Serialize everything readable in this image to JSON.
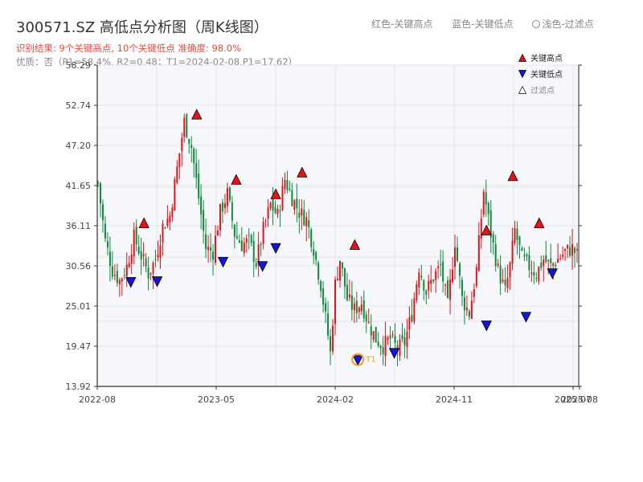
{
  "title": "300571.SZ 高低点分析图（周K线图）",
  "subtitle_result": "识别结果: 9个关键高点, 10个关键低点  准确度: 98.0%",
  "subtitle_quality": "优质：否（P1=58.4%, R2=0.48；T1=2024-02-08,P1=17.62）",
  "top_legend": {
    "red": "红色-关键高点",
    "blue": "蓝色-关键低点",
    "light": "浅色-过滤点"
  },
  "colors": {
    "up": "#e5121a",
    "down": "#0d8a3a",
    "high_marker": "#e5121a",
    "low_marker": "#1515d8",
    "t1": "#f39c12",
    "plot_bg": "#f5f7fa",
    "grid": "#e3e6ea",
    "axis": "#333333"
  },
  "chart_data": {
    "type": "candlestick",
    "y_ticks": [
      "13.92",
      "19.47",
      "25.01",
      "30.56",
      "36.11",
      "41.65",
      "47.20",
      "52.74",
      "58.29"
    ],
    "ylim": [
      13.92,
      58.29
    ],
    "x_ticks": [
      "2022-08",
      "2023-05",
      "2024-02",
      "2024-11",
      "2025-07",
      "2025-08"
    ],
    "grid": true,
    "legend_position": "top-right",
    "legend": [
      {
        "key": "high",
        "label": "关键高点"
      },
      {
        "key": "low",
        "label": "关键低点"
      },
      {
        "key": "filtered",
        "label": "过滤点"
      }
    ],
    "t1_label": "T1",
    "t1": {
      "date": "2024-02-08",
      "price": 17.62
    },
    "key_highs": [
      {
        "date": "2022-10",
        "price": 35.5
      },
      {
        "date": "2023-02",
        "price": 50.5
      },
      {
        "date": "2023-05",
        "price": 41.5
      },
      {
        "date": "2023-08",
        "price": 39.5
      },
      {
        "date": "2023-10",
        "price": 42.5
      },
      {
        "date": "2024-02",
        "price": 32.5
      },
      {
        "date": "2024-12",
        "price": 34.5
      },
      {
        "date": "2025-02",
        "price": 42.0
      },
      {
        "date": "2025-04",
        "price": 35.5
      }
    ],
    "key_lows": [
      {
        "date": "2022-09",
        "price": 28.4
      },
      {
        "date": "2022-11",
        "price": 28.5
      },
      {
        "date": "2023-04",
        "price": 31.2
      },
      {
        "date": "2023-07",
        "price": 30.6
      },
      {
        "date": "2023-08",
        "price": 33.1
      },
      {
        "date": "2024-05",
        "price": 18.6
      },
      {
        "date": "2024-12",
        "price": 22.4
      },
      {
        "date": "2025-03",
        "price": 23.6
      },
      {
        "date": "2025-05",
        "price": 29.6
      },
      {
        "date": "2024-02-08",
        "price": 17.62
      }
    ],
    "weekly_close_path": [
      [
        0,
        42.0
      ],
      [
        3,
        34.0
      ],
      [
        6,
        30.0
      ],
      [
        9,
        28.5
      ],
      [
        12,
        30.5
      ],
      [
        15,
        34.5
      ],
      [
        18,
        32.0
      ],
      [
        21,
        29.5
      ],
      [
        24,
        31.5
      ],
      [
        27,
        36.0
      ],
      [
        30,
        37.5
      ],
      [
        33,
        44.0
      ],
      [
        36,
        50.5
      ],
      [
        39,
        47.0
      ],
      [
        42,
        40.0
      ],
      [
        45,
        33.0
      ],
      [
        48,
        32.5
      ],
      [
        51,
        38.0
      ],
      [
        54,
        40.5
      ],
      [
        57,
        35.0
      ],
      [
        60,
        33.5
      ],
      [
        63,
        34.0
      ],
      [
        66,
        31.0
      ],
      [
        69,
        35.5
      ],
      [
        72,
        39.0
      ],
      [
        75,
        37.5
      ],
      [
        78,
        42.5
      ],
      [
        81,
        40.0
      ],
      [
        84,
        38.0
      ],
      [
        87,
        37.0
      ],
      [
        90,
        33.0
      ],
      [
        93,
        28.0
      ],
      [
        96,
        21.0
      ],
      [
        97,
        18.5
      ],
      [
        99,
        28.0
      ],
      [
        101,
        31.5
      ],
      [
        104,
        26.0
      ],
      [
        107,
        24.5
      ],
      [
        110,
        25.5
      ],
      [
        113,
        22.5
      ],
      [
        116,
        20.5
      ],
      [
        119,
        19.5
      ],
      [
        122,
        20.5
      ],
      [
        125,
        19.0
      ],
      [
        128,
        20.0
      ],
      [
        131,
        24.0
      ],
      [
        134,
        30.5
      ],
      [
        137,
        27.0
      ],
      [
        140,
        29.0
      ],
      [
        143,
        30.5
      ],
      [
        146,
        25.0
      ],
      [
        149,
        34.0
      ],
      [
        152,
        26.0
      ],
      [
        155,
        24.0
      ],
      [
        158,
        30.0
      ],
      [
        161,
        41.0
      ],
      [
        164,
        35.0
      ],
      [
        167,
        30.0
      ],
      [
        170,
        27.0
      ],
      [
        172,
        30.5
      ],
      [
        174,
        35.5
      ],
      [
        177,
        31.5
      ],
      [
        180,
        30.5
      ],
      [
        183,
        29.5
      ],
      [
        186,
        31.5
      ],
      [
        189,
        30.5
      ],
      [
        192,
        31.5
      ],
      [
        195,
        32.5
      ],
      [
        198,
        33.0
      ],
      [
        200,
        32.0
      ]
    ]
  }
}
